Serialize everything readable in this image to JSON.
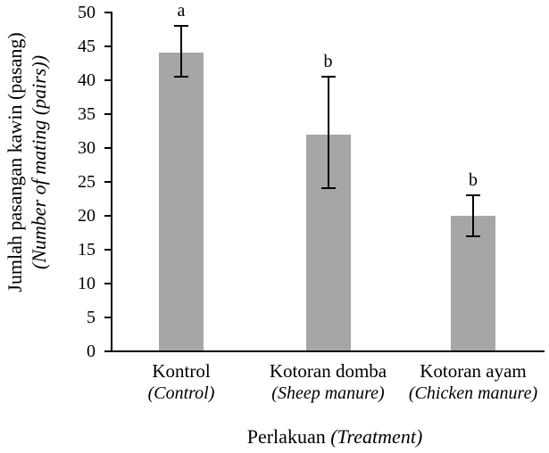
{
  "chart_data": {
    "type": "bar",
    "title": "",
    "categories": [
      {
        "label": "Kontrol",
        "sublabel": "(Control)"
      },
      {
        "label": "Kotoran domba",
        "sublabel": "(Sheep manure)"
      },
      {
        "label": "Kotoran ayam",
        "sublabel": "(Chicken manure)"
      }
    ],
    "values": [
      44,
      32,
      20
    ],
    "error_upper": [
      48,
      40.5,
      23
    ],
    "error_lower": [
      40.5,
      24,
      17
    ],
    "significance_letters": [
      "a",
      "b",
      "b"
    ],
    "ylabel": {
      "line1": "Jumlah pasangan kawin (pasang)",
      "line2": "(Number of mating (pairs))"
    },
    "xlabel": {
      "main": "Perlakuan",
      "italic": "(Treatment)"
    },
    "yticks": [
      0,
      5,
      10,
      15,
      20,
      25,
      30,
      35,
      40,
      45,
      50
    ],
    "ylim": [
      0,
      50
    ],
    "grid": false,
    "legend": "none",
    "bar_color": "#a6a6a6",
    "axis_color": "#000000",
    "error_bar_color": "#000000",
    "text_color": "#000000"
  }
}
